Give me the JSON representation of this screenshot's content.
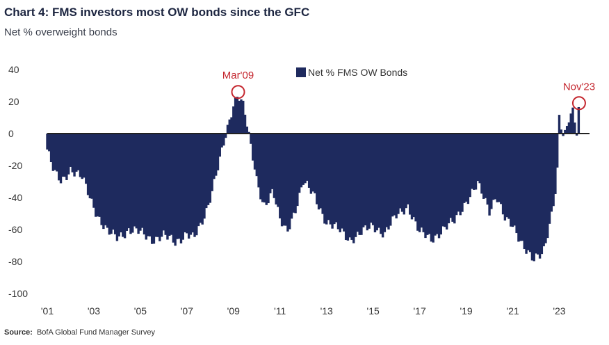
{
  "header": {
    "title": "Chart 4: FMS investors most OW bonds since the GFC",
    "subtitle": "Net % overweight bonds"
  },
  "footer": {
    "source_label": "Source:",
    "source_text": "BofA Global Fund Manager Survey"
  },
  "colors": {
    "bars": "#1e2a5e",
    "annotation": "#c4262e",
    "axis": "#222222"
  },
  "chart_data": {
    "type": "bar",
    "series": [
      {
        "name": "Net % FMS OW Bonds"
      }
    ],
    "ylim": [
      -100,
      40
    ],
    "yticks": [
      "40",
      "20",
      "0",
      "-20",
      "-40",
      "-60",
      "-80",
      "-100"
    ],
    "xticks": [
      "'01",
      "'03",
      "'05",
      "'07",
      "'09",
      "'11",
      "'13",
      "'15",
      "'17",
      "'19",
      "'21",
      "'23"
    ],
    "xrange": [
      2001.0,
      2024.3
    ],
    "legend_position": "top-center",
    "grid": false,
    "annotations": [
      {
        "text": "Mar'09",
        "x": 2009.2,
        "y": 26
      },
      {
        "text": "Nov'23",
        "x": 2023.85,
        "y": 19
      }
    ],
    "anchors": [
      [
        2001.0,
        -10
      ],
      [
        2001.3,
        -25
      ],
      [
        2001.6,
        -30
      ],
      [
        2002.0,
        -22
      ],
      [
        2002.5,
        -28
      ],
      [
        2002.9,
        -42
      ],
      [
        2003.2,
        -52
      ],
      [
        2003.6,
        -62
      ],
      [
        2004.0,
        -65
      ],
      [
        2004.5,
        -60
      ],
      [
        2005.0,
        -62
      ],
      [
        2005.5,
        -66
      ],
      [
        2006.0,
        -64
      ],
      [
        2006.5,
        -68
      ],
      [
        2007.0,
        -62
      ],
      [
        2007.3,
        -66
      ],
      [
        2007.6,
        -58
      ],
      [
        2007.9,
        -45
      ],
      [
        2008.2,
        -28
      ],
      [
        2008.5,
        -12
      ],
      [
        2008.8,
        5
      ],
      [
        2009.0,
        18
      ],
      [
        2009.2,
        26
      ],
      [
        2009.45,
        18
      ],
      [
        2009.7,
        -5
      ],
      [
        2010.0,
        -30
      ],
      [
        2010.3,
        -45
      ],
      [
        2010.7,
        -35
      ],
      [
        2011.0,
        -55
      ],
      [
        2011.3,
        -62
      ],
      [
        2011.7,
        -45
      ],
      [
        2012.0,
        -30
      ],
      [
        2012.5,
        -40
      ],
      [
        2013.0,
        -55
      ],
      [
        2013.5,
        -60
      ],
      [
        2014.0,
        -66
      ],
      [
        2014.5,
        -62
      ],
      [
        2015.0,
        -58
      ],
      [
        2015.5,
        -62
      ],
      [
        2016.0,
        -52
      ],
      [
        2016.5,
        -45
      ],
      [
        2017.0,
        -62
      ],
      [
        2017.5,
        -66
      ],
      [
        2018.0,
        -60
      ],
      [
        2018.5,
        -55
      ],
      [
        2019.0,
        -42
      ],
      [
        2019.5,
        -32
      ],
      [
        2020.0,
        -48
      ],
      [
        2020.3,
        -38
      ],
      [
        2020.7,
        -55
      ],
      [
        2021.0,
        -58
      ],
      [
        2021.5,
        -70
      ],
      [
        2021.9,
        -80
      ],
      [
        2022.3,
        -75
      ],
      [
        2022.6,
        -55
      ],
      [
        2022.9,
        -30
      ],
      [
        2023.0,
        10
      ],
      [
        2023.2,
        -5
      ],
      [
        2023.4,
        8
      ],
      [
        2023.6,
        15
      ],
      [
        2023.75,
        2
      ],
      [
        2023.85,
        19
      ]
    ]
  }
}
